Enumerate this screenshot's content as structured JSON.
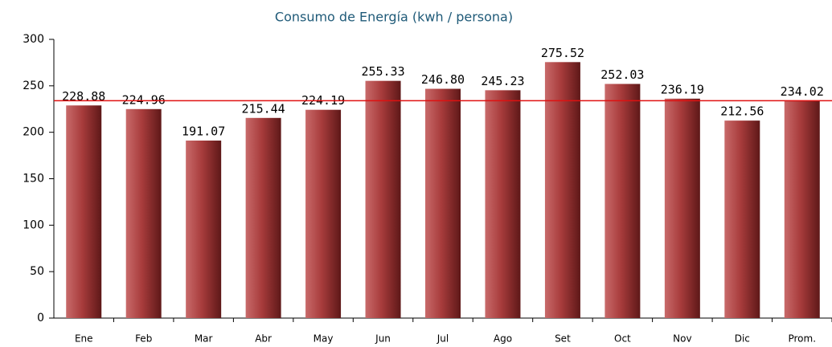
{
  "chart_data": {
    "type": "bar",
    "title": "Consumo de Energía (kwh / persona)",
    "categories": [
      "Ene",
      "Feb",
      "Mar",
      "Abr",
      "May",
      "Jun",
      "Jul",
      "Ago",
      "Set",
      "Oct",
      "Nov",
      "Dic",
      "Prom."
    ],
    "values": [
      228.88,
      224.96,
      191.07,
      215.44,
      224.19,
      255.33,
      246.8,
      245.23,
      275.52,
      252.03,
      236.19,
      212.56,
      234.02
    ],
    "value_labels": [
      "228.88",
      "224.96",
      "191.07",
      "215.44",
      "224.19",
      "255.33",
      "246.80",
      "245.23",
      "275.52",
      "252.03",
      "236.19",
      "212.56",
      "234.02"
    ],
    "color": "#a03a3a",
    "ylim": [
      0,
      300
    ],
    "yticks": [
      0,
      50,
      100,
      150,
      200,
      250,
      300
    ],
    "reference_line": {
      "value": 234.02,
      "color": "#e01010"
    }
  }
}
